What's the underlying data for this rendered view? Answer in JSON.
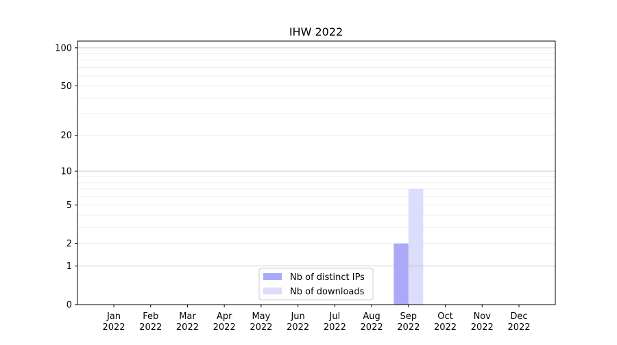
{
  "chart_data": {
    "type": "bar",
    "title": "IHW 2022",
    "xlabel": "",
    "ylabel": "",
    "y_scale": "log(1+y)",
    "ylim": [
      0,
      113
    ],
    "yticks": [
      0,
      1,
      2,
      5,
      10,
      20,
      50,
      100
    ],
    "ytick_labels": [
      "0",
      "1",
      "2",
      "5",
      "10",
      "20",
      "50",
      "100"
    ],
    "grid": true,
    "legend_position": "bottom-center",
    "categories": [
      [
        "Jan",
        "2022"
      ],
      [
        "Feb",
        "2022"
      ],
      [
        "Mar",
        "2022"
      ],
      [
        "Apr",
        "2022"
      ],
      [
        "May",
        "2022"
      ],
      [
        "Jun",
        "2022"
      ],
      [
        "Jul",
        "2022"
      ],
      [
        "Aug",
        "2022"
      ],
      [
        "Sep",
        "2022"
      ],
      [
        "Oct",
        "2022"
      ],
      [
        "Nov",
        "2022"
      ],
      [
        "Dec",
        "2022"
      ]
    ],
    "series": [
      {
        "name": "Nb of distinct IPs",
        "color": "#aaaaf8",
        "values": [
          0,
          0,
          0,
          0,
          0,
          0,
          0,
          0,
          2,
          0,
          0,
          0
        ]
      },
      {
        "name": "Nb of downloads",
        "color": "#dcdcfb",
        "values": [
          0,
          0,
          0,
          0,
          0,
          0,
          0,
          0,
          7,
          0,
          0,
          0
        ]
      }
    ]
  }
}
